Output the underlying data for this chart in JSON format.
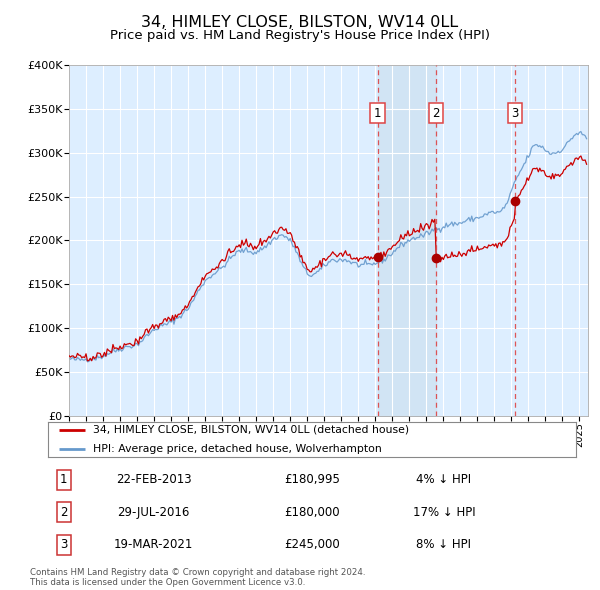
{
  "title": "34, HIMLEY CLOSE, BILSTON, WV14 0LL",
  "subtitle": "Price paid vs. HM Land Registry's House Price Index (HPI)",
  "title_fontsize": 11.5,
  "subtitle_fontsize": 9.5,
  "bg_color": "#ddeeff",
  "fig_bg_color": "#ffffff",
  "ylim": [
    0,
    400000
  ],
  "yticks": [
    0,
    50000,
    100000,
    150000,
    200000,
    250000,
    300000,
    350000,
    400000
  ],
  "ytick_labels": [
    "£0",
    "£50K",
    "£100K",
    "£150K",
    "£200K",
    "£250K",
    "£300K",
    "£350K",
    "£400K"
  ],
  "xmin_year": 1995.0,
  "xmax_year": 2025.5,
  "xtick_years": [
    1995,
    1996,
    1997,
    1998,
    1999,
    2000,
    2001,
    2002,
    2003,
    2004,
    2005,
    2006,
    2007,
    2008,
    2009,
    2010,
    2011,
    2012,
    2013,
    2014,
    2015,
    2016,
    2017,
    2018,
    2019,
    2020,
    2021,
    2022,
    2023,
    2024,
    2025
  ],
  "hpi_color": "#6699cc",
  "price_color": "#cc0000",
  "marker_color": "#aa0000",
  "vline_color": "#dd4444",
  "shade_color": "#cce0f0",
  "sale_dates_float": [
    2013.13,
    2016.57,
    2021.21
  ],
  "sale_prices": [
    180995,
    180000,
    245000
  ],
  "sale_labels": [
    "1",
    "2",
    "3"
  ],
  "table_rows": [
    {
      "num": "1",
      "date": "22-FEB-2013",
      "price": "£180,995",
      "pct": "4% ↓ HPI"
    },
    {
      "num": "2",
      "date": "29-JUL-2016",
      "price": "£180,000",
      "pct": "17% ↓ HPI"
    },
    {
      "num": "3",
      "date": "19-MAR-2021",
      "price": "£245,000",
      "pct": "8% ↓ HPI"
    }
  ],
  "legend_label_red": "34, HIMLEY CLOSE, BILSTON, WV14 0LL (detached house)",
  "legend_label_blue": "HPI: Average price, detached house, Wolverhampton",
  "footnote": "Contains HM Land Registry data © Crown copyright and database right 2024.\nThis data is licensed under the Open Government Licence v3.0.",
  "hpi_index": [
    100.0,
    99.2,
    98.5,
    98.8,
    99.5,
    100.1,
    101.2,
    102.5,
    104.8,
    108.2,
    112.1,
    114.9,
    117.5,
    120.1,
    121.8,
    123.2,
    125.7,
    131.2,
    138.5,
    144.8,
    151.0,
    155.3,
    158.0,
    161.2,
    164.5,
    168.8,
    174.5,
    181.0,
    188.5,
    200.0,
    213.5,
    227.0,
    236.5,
    243.5,
    249.5,
    254.0,
    260.0,
    268.5,
    276.5,
    284.0,
    288.5,
    290.0,
    290.0,
    287.0,
    287.0,
    291.5,
    296.0,
    302.0,
    309.5,
    314.0,
    317.0,
    314.0,
    306.5,
    296.0,
    278.0,
    261.5,
    249.5,
    246.5,
    249.5,
    255.5,
    263.0,
    269.0,
    273.5,
    273.5,
    273.5,
    273.5,
    270.5,
    267.5,
    264.5,
    264.5,
    264.5,
    264.5,
    267.5,
    270.5,
    273.5,
    279.5,
    285.5,
    293.0,
    299.0,
    303.5,
    308.0,
    311.0,
    314.0,
    315.5,
    318.5,
    323.0,
    327.5,
    329.0,
    332.0,
    335.0,
    336.5,
    336.5,
    338.0,
    341.0,
    344.0,
    345.5,
    347.0,
    350.0,
    353.0,
    356.0,
    357.5,
    356.0,
    362.0,
    373.5,
    393.0,
    413.0,
    427.5,
    441.0,
    456.0,
    471.0,
    475.5,
    472.5,
    466.5,
    460.5,
    460.5,
    463.5,
    468.0,
    475.5,
    486.0,
    493.5,
    496.0,
    492.0,
    484.5,
    480.0,
    484.5,
    493.5,
    505.5,
    519.0,
    532.5,
    540.0,
    547.5,
    555.0,
    555.0,
    555.0,
    562.5,
    570.0,
    577.5,
    585.0
  ]
}
